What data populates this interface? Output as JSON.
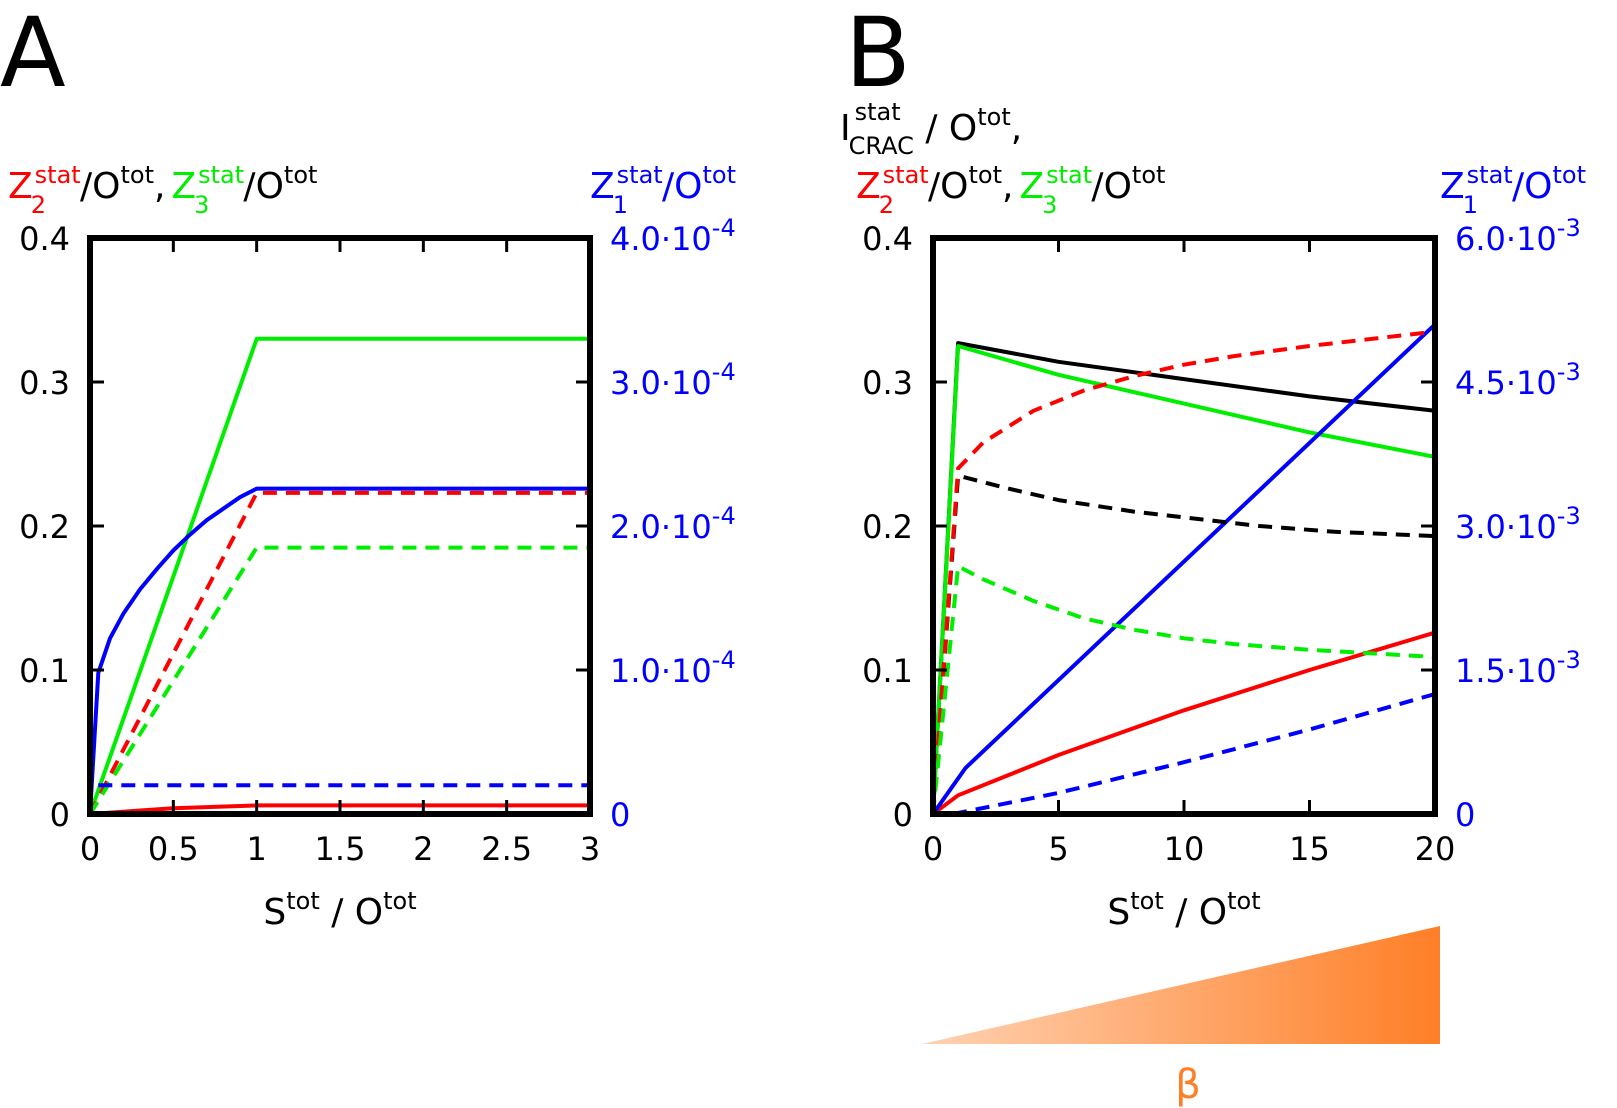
{
  "colors": {
    "red": "#ff0000",
    "green": "#00ee00",
    "blue": "#0000ff",
    "black": "#000000",
    "orange": "#ff7f27"
  },
  "chart_data": [
    {
      "panel": "A",
      "type": "line",
      "title": "",
      "ylabel_left": {
        "Z": "Z",
        "sub2": "2",
        "sub3": "3",
        "stat": "stat",
        "O": "O",
        "tot": "tot",
        "slash": "/",
        "comma": ","
      },
      "ylabel_right": {
        "Z": "Z",
        "sub": "1",
        "stat": "stat",
        "O": "O",
        "tot": "tot",
        "slash": "/"
      },
      "xlabel": {
        "S": "S",
        "tot": "tot",
        "slash": " / ",
        "O": "O"
      },
      "xlim": [
        0,
        3
      ],
      "ylim_left": [
        0,
        0.4
      ],
      "ylim_right": [
        0,
        0.0004
      ],
      "xticks": [
        0,
        0.5,
        1,
        1.5,
        2,
        2.5,
        3
      ],
      "xtick_labels": [
        "0",
        "0.5",
        "1",
        "1.5",
        "2",
        "2.5",
        "3"
      ],
      "yticks_left": [
        0,
        0.1,
        0.2,
        0.3,
        0.4
      ],
      "ytick_labels_left": [
        "0",
        "0.1",
        "0.2",
        "0.3",
        "0.4"
      ],
      "yticks_right": [
        0,
        0.0001,
        0.0002,
        0.0003,
        0.0004
      ],
      "ytick_labels_right": [
        {
          "m": "0",
          "e": ""
        },
        {
          "m": "1.0·10",
          "e": "-4"
        },
        {
          "m": "2.0·10",
          "e": "-4"
        },
        {
          "m": "3.0·10",
          "e": "-4"
        },
        {
          "m": "4.0·10",
          "e": "-4"
        }
      ],
      "series": [
        {
          "name": "Z2 solid",
          "color": "red",
          "dash": false,
          "axis": "left",
          "x": [
            0,
            0.5,
            1,
            3
          ],
          "y": [
            0,
            0.004,
            0.006,
            0.006
          ]
        },
        {
          "name": "Z3 solid",
          "color": "green",
          "dash": false,
          "axis": "left",
          "x": [
            0,
            1,
            3
          ],
          "y": [
            0,
            0.33,
            0.33
          ]
        },
        {
          "name": "Z1 solid",
          "color": "blue",
          "dash": false,
          "axis": "right",
          "x": [
            0,
            0.05,
            0.12,
            0.2,
            0.3,
            0.4,
            0.5,
            0.6,
            0.7,
            0.8,
            0.9,
            1,
            3
          ],
          "y": [
            0,
            9.8e-05,
            0.000122,
            0.000139,
            0.000156,
            0.00017,
            0.000183,
            0.000194,
            0.000204,
            0.000212,
            0.00022,
            0.000226,
            0.000226
          ]
        },
        {
          "name": "Z2 dashed",
          "color": "red",
          "dash": true,
          "axis": "left",
          "x": [
            0,
            1,
            3
          ],
          "y": [
            0,
            0.223,
            0.223
          ]
        },
        {
          "name": "Z3 dashed",
          "color": "green",
          "dash": true,
          "axis": "left",
          "x": [
            0,
            1,
            3
          ],
          "y": [
            0,
            0.185,
            0.185
          ]
        },
        {
          "name": "Z1 dashed",
          "color": "blue",
          "dash": true,
          "axis": "right",
          "x": [
            0.05,
            3
          ],
          "y": [
            2e-05,
            2e-05
          ]
        }
      ]
    },
    {
      "panel": "B",
      "type": "line",
      "title": "",
      "ylabel_top": {
        "I": "I",
        "stat": "stat",
        "crac": "CRAC",
        "slash": " / ",
        "O": "O",
        "tot": "tot",
        "comma": ","
      },
      "ylabel_left": {
        "Z": "Z",
        "sub2": "2",
        "sub3": "3",
        "stat": "stat",
        "O": "O",
        "tot": "tot",
        "slash": "/",
        "comma": ","
      },
      "ylabel_right": {
        "Z": "Z",
        "sub": "1",
        "stat": "stat",
        "O": "O",
        "tot": "tot",
        "slash": "/"
      },
      "xlabel": {
        "S": "S",
        "tot": "tot",
        "slash": " / ",
        "O": "O"
      },
      "xlim": [
        0,
        20
      ],
      "ylim_left": [
        0,
        0.4
      ],
      "ylim_right": [
        0,
        0.006
      ],
      "xticks": [
        0,
        5,
        10,
        15,
        20
      ],
      "xtick_labels": [
        "0",
        "5",
        "10",
        "15",
        "20"
      ],
      "yticks_left": [
        0,
        0.1,
        0.2,
        0.3,
        0.4
      ],
      "ytick_labels_left": [
        "0",
        "0.1",
        "0.2",
        "0.3",
        "0.4"
      ],
      "yticks_right": [
        0,
        0.0015,
        0.003,
        0.0045,
        0.006
      ],
      "ytick_labels_right": [
        {
          "m": "0",
          "e": ""
        },
        {
          "m": "1.5·10",
          "e": "-3"
        },
        {
          "m": "3.0·10",
          "e": "-3"
        },
        {
          "m": "4.5·10",
          "e": "-3"
        },
        {
          "m": "6.0·10",
          "e": "-3"
        }
      ],
      "series": [
        {
          "name": "I_CRAC solid",
          "color": "black",
          "dash": false,
          "axis": "left",
          "x": [
            0,
            1,
            5,
            10,
            15,
            20
          ],
          "y": [
            0,
            0.327,
            0.314,
            0.302,
            0.29,
            0.28
          ]
        },
        {
          "name": "Z3 solid",
          "color": "green",
          "dash": false,
          "axis": "left",
          "x": [
            0,
            1,
            5,
            10,
            15,
            20
          ],
          "y": [
            0,
            0.325,
            0.305,
            0.285,
            0.265,
            0.248
          ]
        },
        {
          "name": "Z2 solid",
          "color": "red",
          "dash": false,
          "axis": "left",
          "x": [
            0,
            1,
            5,
            10,
            15,
            20
          ],
          "y": [
            0,
            0.013,
            0.041,
            0.072,
            0.1,
            0.126
          ]
        },
        {
          "name": "Z1 solid",
          "color": "blue",
          "dash": false,
          "axis": "right",
          "x": [
            0,
            1.3,
            20
          ],
          "y": [
            0,
            0.00048,
            0.0051
          ]
        },
        {
          "name": "I_CRAC dashed",
          "color": "black",
          "dash": true,
          "axis": "left",
          "x": [
            0,
            1,
            3,
            5,
            8,
            10,
            13,
            16,
            20
          ],
          "y": [
            0,
            0.235,
            0.226,
            0.218,
            0.21,
            0.206,
            0.2,
            0.196,
            0.193
          ]
        },
        {
          "name": "Z2 dashed",
          "color": "red",
          "dash": true,
          "axis": "left",
          "x": [
            0,
            1,
            2,
            4,
            6,
            8,
            10,
            12,
            15,
            20
          ],
          "y": [
            0,
            0.24,
            0.258,
            0.28,
            0.294,
            0.304,
            0.312,
            0.318,
            0.325,
            0.335
          ]
        },
        {
          "name": "Z3 dashed",
          "color": "green",
          "dash": true,
          "axis": "left",
          "x": [
            0,
            1,
            2,
            4,
            6,
            8,
            10,
            12,
            15,
            20
          ],
          "y": [
            0,
            0.172,
            0.163,
            0.148,
            0.136,
            0.128,
            0.122,
            0.118,
            0.114,
            0.109
          ]
        },
        {
          "name": "Z1 dashed",
          "color": "blue",
          "dash": true,
          "axis": "right",
          "x": [
            0.8,
            5,
            10,
            15,
            20
          ],
          "y": [
            0,
            0.00022,
            0.00054,
            0.00088,
            0.00125
          ]
        }
      ]
    }
  ],
  "panels": {
    "a": "A",
    "b": "B"
  },
  "beta_label": "β"
}
